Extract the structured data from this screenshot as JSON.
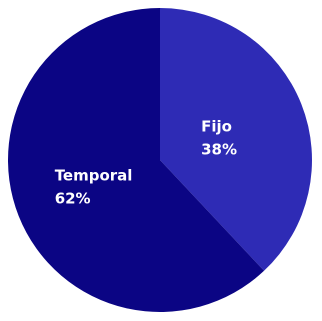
{
  "chart_data": {
    "type": "pie",
    "title": "",
    "legend": "none",
    "slices": [
      {
        "label": "Fijo",
        "value": 38,
        "value_label": "38%",
        "color": "#2e2bb5"
      },
      {
        "label": "Temporal",
        "value": 62,
        "value_label": "62%",
        "color": "#0b0584"
      }
    ]
  }
}
